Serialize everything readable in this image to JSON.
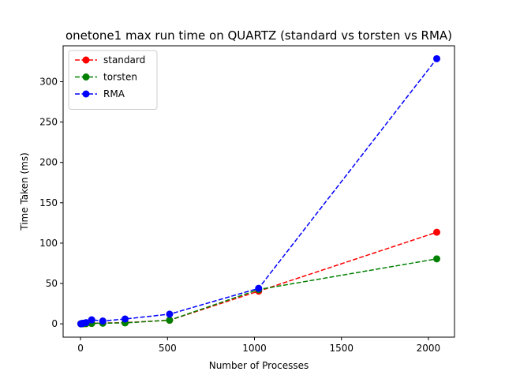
{
  "chart_data": {
    "type": "line",
    "title": "onetone1 max run time on QUARTZ (standard vs torsten vs RMA)",
    "xlabel": "Number of Processes",
    "ylabel": "Time Taken (ms)",
    "x": [
      2,
      4,
      8,
      16,
      32,
      64,
      128,
      256,
      512,
      1024,
      2048
    ],
    "xlim": [
      -100,
      2150
    ],
    "ylim": [
      -16.5,
      344.5
    ],
    "xticks": [
      0,
      500,
      1000,
      1500,
      2000
    ],
    "yticks": [
      0,
      50,
      100,
      150,
      200,
      250,
      300
    ],
    "grid": false,
    "legend_position": "top-left",
    "line_style": "dashed",
    "marker": "circle",
    "series": [
      {
        "name": "standard",
        "color": "#ff0000",
        "values": [
          0.05,
          0.08,
          0.1,
          0.15,
          0.3,
          0.6,
          1.0,
          1.5,
          4.5,
          40.5,
          113.5
        ]
      },
      {
        "name": "torsten",
        "color": "#008000",
        "values": [
          0.04,
          0.06,
          0.08,
          0.12,
          0.25,
          0.5,
          0.8,
          1.2,
          4.5,
          42.5,
          80.5
        ]
      },
      {
        "name": "RMA",
        "color": "#0000ff",
        "values": [
          0.1,
          0.2,
          0.5,
          0.8,
          1.5,
          5.0,
          3.5,
          6.0,
          12.0,
          44.0,
          328.5
        ]
      }
    ]
  }
}
